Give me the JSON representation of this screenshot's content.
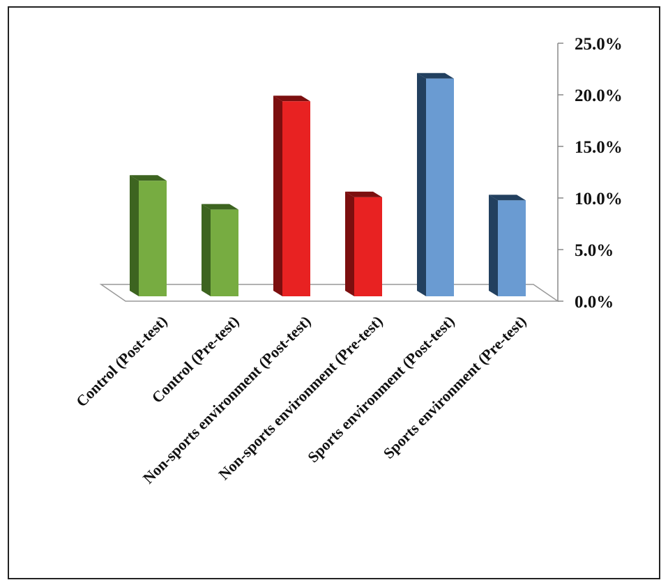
{
  "chart_data": {
    "type": "bar3d",
    "categories": [
      "Control (Post-test)",
      "Control (Pre-test)",
      "Non-sports environment (Post-test)",
      "Non-sports environment (Pre-test)",
      "Sports environment (Post-test)",
      "Sports environment (Pre-test)"
    ],
    "values": [
      11.2,
      8.4,
      18.9,
      9.6,
      21.1,
      9.3
    ],
    "colors": [
      "#77ac41",
      "#77ac41",
      "#e82222",
      "#e82222",
      "#6a9bd2",
      "#6a9bd2"
    ],
    "side_colors": [
      "#3d6420",
      "#3d6420",
      "#7c0f0f",
      "#7c0f0f",
      "#22405f",
      "#22405f"
    ],
    "ylim": [
      0,
      25
    ],
    "yticks": [
      {
        "value": 0,
        "label": "0.0%"
      },
      {
        "value": 5,
        "label": "5.0%"
      },
      {
        "value": 10,
        "label": "10.0%"
      },
      {
        "value": 15,
        "label": "15.0%"
      },
      {
        "value": 20,
        "label": "20.0%"
      },
      {
        "value": 25,
        "label": "25.0%"
      }
    ],
    "y_axis_side": "right"
  }
}
